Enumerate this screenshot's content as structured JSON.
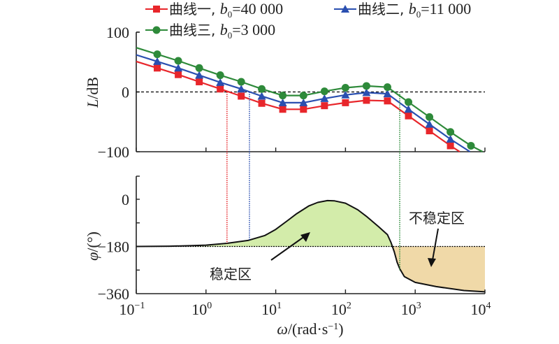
{
  "chart_data": [
    {
      "type": "line",
      "panel": "magnitude",
      "title": "",
      "xlabel": "ω/(rad·s⁻¹)",
      "ylabel": "L/dB",
      "xscale": "log",
      "xlim": [
        0.1,
        10000
      ],
      "ylim": [
        -100,
        100
      ],
      "x_ticks": [
        "10^-1",
        "10^0",
        "10^1",
        "10^2",
        "10^3",
        "10^4"
      ],
      "y_ticks": [
        "100",
        "0",
        "−100"
      ],
      "reference_line": {
        "y": 0,
        "style": "dashed",
        "color": "#000000"
      },
      "legend": {
        "placement": "top",
        "entries": [
          {
            "label": "曲线一, ",
            "param": "b",
            "sub": "0",
            "value": "=40 000",
            "color": "#e8262b",
            "marker": "square"
          },
          {
            "label": "曲线二, ",
            "param": "b",
            "sub": "0",
            "value": "=11 000",
            "color": "#2a4fb0",
            "marker": "triangle"
          },
          {
            "label": "曲线三, ",
            "param": "b",
            "sub": "0",
            "value": "=3 000",
            "color": "#2e8a3a",
            "marker": "circle"
          }
        ]
      },
      "x": [
        0.1,
        0.2,
        0.4,
        0.8,
        1.6,
        3.2,
        6.3,
        12.6,
        25,
        50,
        100,
        200,
        400,
        800,
        1600,
        3200,
        6300,
        10000
      ],
      "series": [
        {
          "name": "曲线一, b0=40 000",
          "color": "#e8262b",
          "marker": "square",
          "values": [
            51,
            40,
            29,
            17,
            5,
            -7,
            -19,
            -29,
            -29,
            -23,
            -18,
            -14,
            -15,
            -40,
            -65,
            -90,
            -112,
            -125
          ],
          "marker_x": [
            0.2,
            0.4,
            0.8,
            1.6,
            3.2,
            6.3,
            12.6,
            25,
            50,
            100,
            200,
            400,
            800,
            1600,
            3200
          ]
        },
        {
          "name": "曲线二, b0=11 000",
          "color": "#2a4fb0",
          "marker": "triangle",
          "values": [
            62,
            51,
            40,
            28,
            16,
            5,
            -7,
            -18,
            -18,
            -11,
            -5,
            -1,
            -3,
            -29,
            -54,
            -79,
            -101,
            -114
          ],
          "marker_x": [
            0.2,
            0.4,
            0.8,
            1.6,
            3.2,
            6.3,
            12.6,
            25,
            50,
            100,
            200,
            400,
            800,
            1600,
            3200
          ]
        },
        {
          "name": "曲线三, b0=3 000",
          "color": "#2e8a3a",
          "marker": "circle",
          "values": [
            74,
            63,
            52,
            40,
            28,
            17,
            5,
            -6,
            -6,
            1,
            7,
            10,
            8,
            -17,
            -42,
            -67,
            -90,
            -102
          ],
          "marker_x": [
            0.2,
            0.4,
            0.8,
            1.6,
            3.2,
            6.3,
            12.6,
            25,
            50,
            100,
            200,
            400,
            800,
            1600,
            3200,
            6300
          ]
        }
      ],
      "crossover_markers": [
        {
          "x": 2.0,
          "color": "#e8262b",
          "style": "dotted"
        },
        {
          "x": 4.2,
          "color": "#2a4fb0",
          "style": "dotted"
        },
        {
          "x": 600,
          "color": "#2e8a3a",
          "style": "dotted"
        }
      ]
    },
    {
      "type": "area",
      "panel": "phase",
      "xlabel": "ω/(rad·s⁻¹)",
      "ylabel": "φ/(°)",
      "xscale": "log",
      "xlim": [
        0.1,
        10000
      ],
      "ylim": [
        -360,
        0
      ],
      "x_ticks": [
        "10^-1",
        "10^0",
        "10^1",
        "10^2",
        "10^3",
        "10^4"
      ],
      "y_ticks": [
        "0",
        "−180",
        "−360"
      ],
      "reference_line": {
        "y": -180,
        "style": "dotted",
        "color": "#000000"
      },
      "x": [
        0.1,
        0.3,
        0.6,
        1,
        2,
        4,
        7,
        10,
        15,
        20,
        30,
        40,
        55,
        70,
        100,
        150,
        200,
        300,
        400,
        450,
        500,
        550,
        600,
        700,
        1000,
        2000,
        5000,
        10000
      ],
      "values": [
        -180,
        -179,
        -177,
        -175,
        -168,
        -157,
        -138,
        -115,
        -80,
        -55,
        -25,
        -12,
        -5,
        -6,
        -15,
        -40,
        -65,
        -105,
        -135,
        -165,
        -200,
        -240,
        -265,
        -295,
        -317,
        -333,
        -348,
        -353
      ],
      "regions": [
        {
          "label": "稳定区",
          "color": "#d3ecaa",
          "where": "above -180"
        },
        {
          "label": "不稳定区",
          "color": "#f0d9a8",
          "where": "below -180"
        }
      ]
    }
  ],
  "labels": {
    "y_top_title": "L/dB",
    "y_bottom_title": "φ/(°)",
    "x_title": "ω/(rad·s⁻¹)",
    "stable_region": "稳定区",
    "unstable_region": "不稳定区"
  }
}
